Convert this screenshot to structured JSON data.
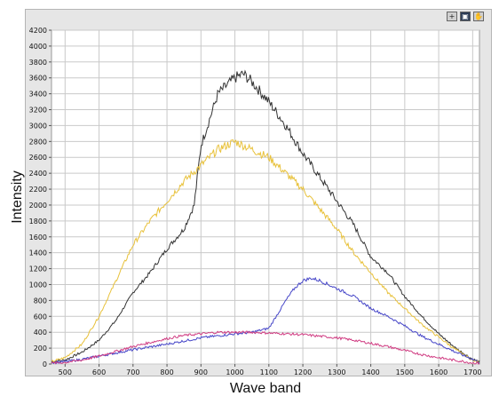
{
  "chart_data": {
    "type": "line",
    "xlabel": "Wave band",
    "ylabel": "Intensity",
    "xlim": [
      460,
      1720
    ],
    "ylim": [
      0,
      4200
    ],
    "x_ticks": [
      500,
      600,
      700,
      800,
      900,
      1000,
      1100,
      1200,
      1300,
      1400,
      1500,
      1600,
      1700
    ],
    "y_ticks": [
      0,
      200,
      400,
      600,
      800,
      1000,
      1200,
      1400,
      1600,
      1800,
      2000,
      2200,
      2400,
      2600,
      2800,
      3000,
      3200,
      3400,
      3600,
      3800,
      4000,
      4200
    ],
    "grid": true,
    "series": [
      {
        "color": "#333333",
        "x": [
          460,
          500,
          550,
          600,
          650,
          700,
          750,
          800,
          850,
          880,
          900,
          950,
          1000,
          1025,
          1050,
          1100,
          1150,
          1200,
          1250,
          1300,
          1350,
          1400,
          1450,
          1500,
          1550,
          1600,
          1650,
          1700,
          1720
        ],
        "y": [
          30,
          50,
          150,
          300,
          550,
          900,
          1150,
          1450,
          1700,
          2000,
          2750,
          3400,
          3600,
          3650,
          3550,
          3300,
          3000,
          2650,
          2350,
          2050,
          1750,
          1350,
          1150,
          850,
          600,
          380,
          200,
          60,
          30
        ]
      },
      {
        "color": "#e8c13a",
        "x": [
          460,
          500,
          550,
          600,
          650,
          700,
          750,
          800,
          850,
          900,
          950,
          1000,
          1050,
          1100,
          1150,
          1200,
          1250,
          1300,
          1350,
          1400,
          1450,
          1500,
          1550,
          1600,
          1650,
          1700,
          1720
        ],
        "y": [
          30,
          80,
          250,
          600,
          1050,
          1500,
          1800,
          2050,
          2300,
          2500,
          2700,
          2800,
          2700,
          2600,
          2400,
          2200,
          1950,
          1700,
          1400,
          1150,
          900,
          700,
          500,
          340,
          180,
          50,
          20
        ]
      },
      {
        "color": "#4646c8",
        "x": [
          460,
          500,
          550,
          600,
          700,
          800,
          900,
          1000,
          1050,
          1100,
          1150,
          1175,
          1200,
          1225,
          1250,
          1300,
          1350,
          1400,
          1450,
          1500,
          1550,
          1600,
          1650,
          1700,
          1720
        ],
        "y": [
          20,
          30,
          60,
          100,
          180,
          250,
          330,
          380,
          400,
          450,
          800,
          950,
          1050,
          1080,
          1050,
          950,
          850,
          700,
          600,
          480,
          350,
          250,
          150,
          60,
          20
        ]
      },
      {
        "color": "#d03c82",
        "x": [
          460,
          500,
          550,
          600,
          700,
          800,
          850,
          900,
          950,
          1000,
          1050,
          1100,
          1150,
          1200,
          1250,
          1300,
          1350,
          1400,
          1450,
          1500,
          1550,
          1600,
          1650,
          1700,
          1720
        ],
        "y": [
          10,
          20,
          50,
          100,
          220,
          320,
          360,
          380,
          400,
          400,
          400,
          390,
          380,
          370,
          350,
          330,
          300,
          260,
          220,
          170,
          120,
          80,
          45,
          15,
          10
        ]
      }
    ]
  }
}
